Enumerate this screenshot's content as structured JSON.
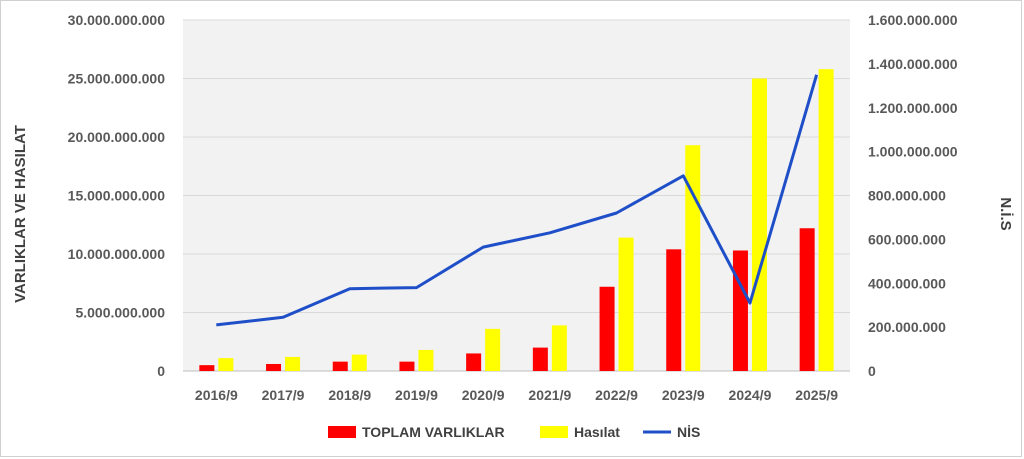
{
  "chart_data": {
    "type": "bar",
    "categories": [
      "2016/9",
      "2017/9",
      "2018/9",
      "2019/9",
      "2020/9",
      "2021/9",
      "2022/9",
      "2023/9",
      "2024/9",
      "2025/9"
    ],
    "series": [
      {
        "name": "TOPLAM VARLIKLAR",
        "type": "bar",
        "axis": "left",
        "color": "#ff0000",
        "values": [
          500000000,
          600000000,
          800000000,
          800000000,
          1500000000,
          2000000000,
          7200000000,
          10400000000,
          10300000000,
          12200000000
        ]
      },
      {
        "name": "Hasılat",
        "type": "bar",
        "axis": "left",
        "color": "#ffff00",
        "values": [
          1100000000,
          1200000000,
          1400000000,
          1800000000,
          3600000000,
          3900000000,
          11400000000,
          19300000000,
          25000000000,
          25800000000
        ]
      },
      {
        "name": "NİS",
        "type": "line",
        "axis": "right",
        "color": "#1f4fc8",
        "values": [
          210000000,
          245000000,
          375000000,
          380000000,
          565000000,
          630000000,
          720000000,
          890000000,
          310000000,
          1350000000
        ]
      }
    ],
    "ylabel": "VARLIKLAR VE HASILAT",
    "y2label": "N.İ.S",
    "ylim": [
      0,
      30000000000
    ],
    "y2lim": [
      0,
      1600000000
    ],
    "yticks": [
      "0",
      "5.000.000.000",
      "10.000.000.000",
      "15.000.000.000",
      "20.000.000.000",
      "25.000.000.000",
      "30.000.000.000"
    ],
    "y2ticks": [
      "0",
      "200.000.000",
      "400.000.000",
      "600.000.000",
      "800.000.000",
      "1.000.000.000",
      "1.200.000.000",
      "1.400.000.000",
      "1.600.000.000"
    ],
    "grid": true,
    "plot_background": "#f2f2f2",
    "legend_position": "bottom"
  }
}
